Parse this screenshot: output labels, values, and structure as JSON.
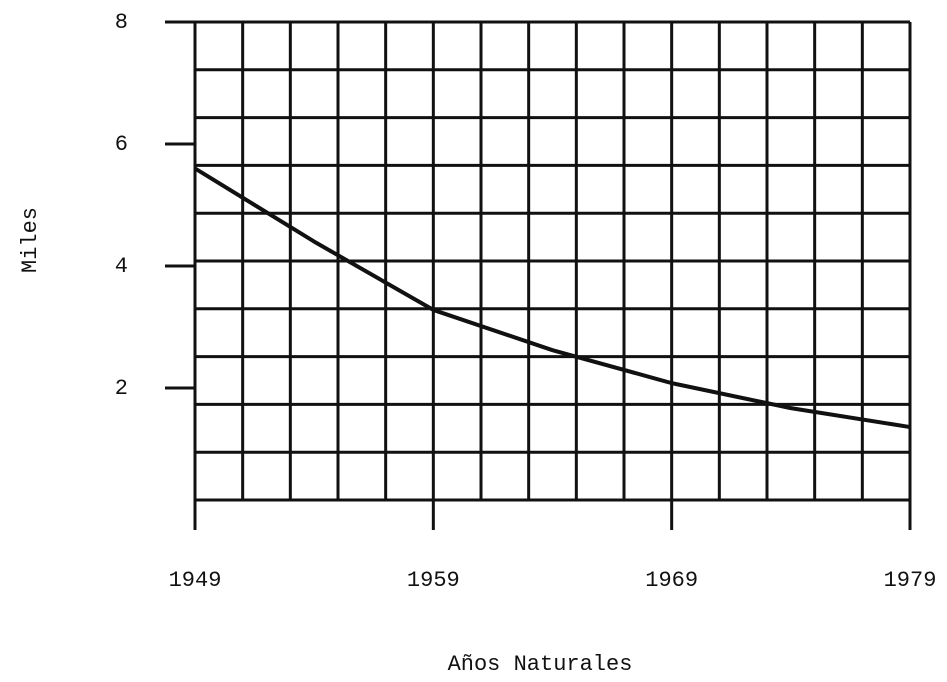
{
  "chart_data": {
    "type": "line",
    "x_label": "Años Naturales",
    "y_label": "Miles",
    "x": [
      1949,
      1954,
      1959,
      1964,
      1969,
      1974,
      1979
    ],
    "series": [
      {
        "name": "Miles",
        "color": "#111111",
        "values": [
          5.6,
          4.4,
          3.28,
          2.62,
          2.08,
          1.67,
          1.36
        ]
      }
    ],
    "xlim": [
      1949,
      1979
    ],
    "xticks": [
      1949,
      1959,
      1969,
      1979
    ],
    "ylim": [
      0,
      8
    ],
    "yticks": [
      2,
      4,
      6,
      8
    ],
    "grid": true
  }
}
